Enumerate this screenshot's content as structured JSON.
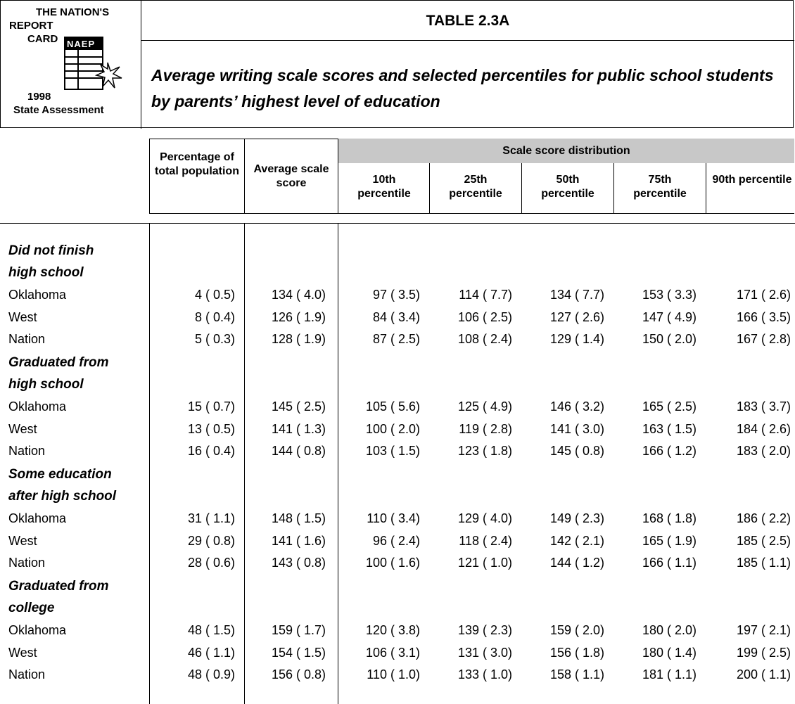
{
  "logo": {
    "line1": "THE NATION'S",
    "line2": "REPORT",
    "line3": "CARD",
    "naep": "NAEP",
    "year": "1998",
    "assessment": "State Assessment"
  },
  "table": {
    "id": "TABLE 2.3A",
    "subtitle": "Average writing scale scores and selected percentiles for public school students by parents’ highest level of education"
  },
  "columns": {
    "pct": "Percentage of total population",
    "avg": "Average scale score",
    "distribution": "Scale score distribution",
    "p10": "10th percentile",
    "p25": "25th percentile",
    "p50": "50th percentile",
    "p75": "75th percentile",
    "p90": "90th percentile"
  },
  "groups": [
    {
      "label_l1": "Did not finish",
      "label_l2": "high school",
      "rows": [
        {
          "name": "Oklahoma",
          "pct": "4 ( 0.5)",
          "avg": "134 ( 4.0)",
          "p10": "97 ( 3.5)",
          "p25": "114 ( 7.7)",
          "p50": "134 ( 7.7)",
          "p75": "153 ( 3.3)",
          "p90": "171 ( 2.6)"
        },
        {
          "name": "West",
          "pct": "8 ( 0.4)",
          "avg": "126 ( 1.9)",
          "p10": "84 ( 3.4)",
          "p25": "106 ( 2.5)",
          "p50": "127 ( 2.6)",
          "p75": "147 ( 4.9)",
          "p90": "166 ( 3.5)"
        },
        {
          "name": "Nation",
          "pct": "5 ( 0.3)",
          "avg": "128 ( 1.9)",
          "p10": "87 ( 2.5)",
          "p25": "108 ( 2.4)",
          "p50": "129 ( 1.4)",
          "p75": "150 ( 2.0)",
          "p90": "167 ( 2.8)"
        }
      ]
    },
    {
      "label_l1": "Graduated from",
      "label_l2": "high school",
      "rows": [
        {
          "name": "Oklahoma",
          "pct": "15 ( 0.7)",
          "avg": "145 ( 2.5)",
          "p10": "105 ( 5.6)",
          "p25": "125 ( 4.9)",
          "p50": "146 ( 3.2)",
          "p75": "165 ( 2.5)",
          "p90": "183 ( 3.7)"
        },
        {
          "name": "West",
          "pct": "13 ( 0.5)",
          "avg": "141 ( 1.3)",
          "p10": "100 ( 2.0)",
          "p25": "119 ( 2.8)",
          "p50": "141 ( 3.0)",
          "p75": "163 ( 1.5)",
          "p90": "184 ( 2.6)"
        },
        {
          "name": "Nation",
          "pct": "16 ( 0.4)",
          "avg": "144 ( 0.8)",
          "p10": "103 ( 1.5)",
          "p25": "123 ( 1.8)",
          "p50": "145 ( 0.8)",
          "p75": "166 ( 1.2)",
          "p90": "183 ( 2.0)"
        }
      ]
    },
    {
      "label_l1": "Some education",
      "label_l2": "after high school",
      "rows": [
        {
          "name": "Oklahoma",
          "pct": "31 ( 1.1)",
          "avg": "148 ( 1.5)",
          "p10": "110 ( 3.4)",
          "p25": "129 ( 4.0)",
          "p50": "149 ( 2.3)",
          "p75": "168 ( 1.8)",
          "p90": "186 ( 2.2)"
        },
        {
          "name": "West",
          "pct": "29 ( 0.8)",
          "avg": "141 ( 1.6)",
          "p10": "96 ( 2.4)",
          "p25": "118 ( 2.4)",
          "p50": "142 ( 2.1)",
          "p75": "165 ( 1.9)",
          "p90": "185 ( 2.5)"
        },
        {
          "name": "Nation",
          "pct": "28 ( 0.6)",
          "avg": "143 ( 0.8)",
          "p10": "100 ( 1.6)",
          "p25": "121 ( 1.0)",
          "p50": "144 ( 1.2)",
          "p75": "166 ( 1.1)",
          "p90": "185 ( 1.1)"
        }
      ]
    },
    {
      "label_l1": "Graduated from",
      "label_l2": "college",
      "rows": [
        {
          "name": "Oklahoma",
          "pct": "48 ( 1.5)",
          "avg": "159 ( 1.7)",
          "p10": "120 ( 3.8)",
          "p25": "139 ( 2.3)",
          "p50": "159 ( 2.0)",
          "p75": "180 ( 2.0)",
          "p90": "197 ( 2.1)"
        },
        {
          "name": "West",
          "pct": "46 ( 1.1)",
          "avg": "154 ( 1.5)",
          "p10": "106 ( 3.1)",
          "p25": "131 ( 3.0)",
          "p50": "156 ( 1.8)",
          "p75": "180 ( 1.4)",
          "p90": "199 ( 2.5)"
        },
        {
          "name": "Nation",
          "pct": "48 ( 0.9)",
          "avg": "156 ( 0.8)",
          "p10": "110 ( 1.0)",
          "p25": "133 ( 1.0)",
          "p50": "158 ( 1.1)",
          "p75": "181 ( 1.1)",
          "p90": "200 ( 1.1)"
        }
      ]
    }
  ]
}
